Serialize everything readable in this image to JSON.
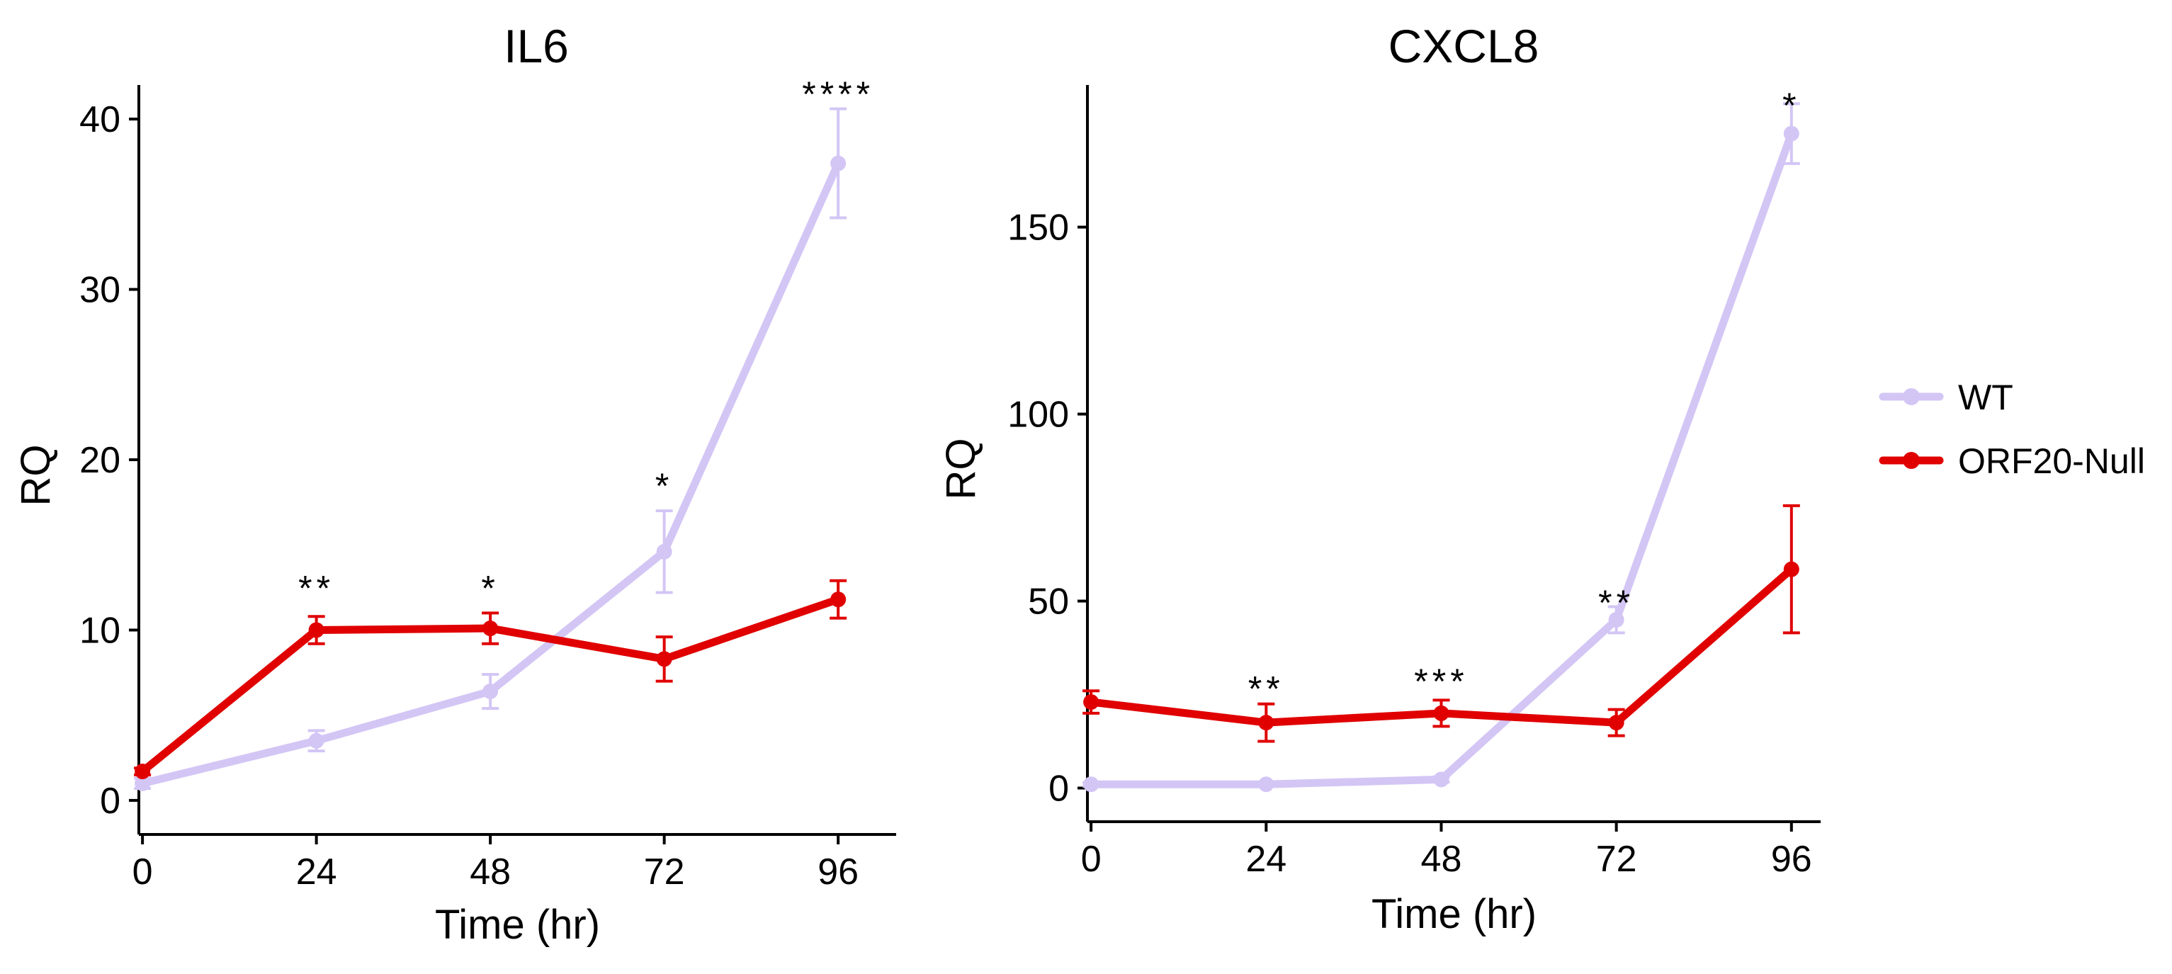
{
  "colors": {
    "wt": "#d3c6f5",
    "null": "#e00000"
  },
  "legend": {
    "entries": [
      {
        "label": "WT",
        "series_key": "wt"
      },
      {
        "label": "ORF20-Null",
        "series_key": "null"
      }
    ]
  },
  "chart_data": [
    {
      "type": "line",
      "title": "IL6",
      "xlabel": "Time (hr)",
      "ylabel": "RQ",
      "x": [
        0,
        24,
        48,
        72,
        96
      ],
      "xticks": [
        "0",
        "24",
        "48",
        "72",
        "96"
      ],
      "xlim": [
        -0.5,
        104
      ],
      "ylim": [
        -2,
        42
      ],
      "yticks": [
        0,
        10,
        20,
        30,
        40
      ],
      "yticklabels": [
        "0",
        "10",
        "20",
        "30",
        "40"
      ],
      "series": [
        {
          "key": "wt",
          "name": "WT",
          "values": [
            1.0,
            3.5,
            6.4,
            14.6,
            37.4
          ],
          "errors": [
            0.3,
            0.6,
            1.0,
            2.4,
            3.2
          ]
        },
        {
          "key": "null",
          "name": "ORF20-Null",
          "values": [
            1.7,
            10.0,
            10.1,
            8.3,
            11.8
          ],
          "errors": [
            0.2,
            0.8,
            0.9,
            1.3,
            1.1
          ]
        }
      ],
      "significance": [
        {
          "x": 24,
          "label": "**",
          "y": 13.0
        },
        {
          "x": 48,
          "label": "*",
          "y": 13.0
        },
        {
          "x": 72,
          "label": "*",
          "y": 19.0
        },
        {
          "x": 96,
          "label": "****",
          "y": 42.0
        }
      ],
      "grid": false,
      "legend": "none"
    },
    {
      "type": "line",
      "title": "CXCL8",
      "xlabel": "Time (hr)",
      "ylabel": "RQ",
      "x": [
        0,
        24,
        48,
        72,
        96
      ],
      "xticks": [
        "0",
        "24",
        "48",
        "72",
        "96"
      ],
      "xlim": [
        -0.5,
        100
      ],
      "ylim": [
        -9,
        188
      ],
      "yticks": [
        0,
        50,
        100,
        150
      ],
      "yticklabels": [
        "0",
        "50",
        "100",
        "150"
      ],
      "series": [
        {
          "key": "wt",
          "name": "WT",
          "values": [
            1.0,
            1.0,
            2.3,
            45.0,
            175.0
          ],
          "errors": [
            0.5,
            0.5,
            0.7,
            3.5,
            8.0
          ]
        },
        {
          "key": "null",
          "name": "ORF20-Null",
          "values": [
            23.0,
            17.5,
            20.0,
            17.5,
            58.5
          ],
          "errors": [
            3.0,
            5.0,
            3.5,
            3.5,
            17.0
          ]
        }
      ],
      "significance": [
        {
          "x": 24,
          "label": "**",
          "y": 29.0
        },
        {
          "x": 48,
          "label": "***",
          "y": 31.0
        },
        {
          "x": 72,
          "label": "**",
          "y": 52.0
        },
        {
          "x": 96,
          "label": "*",
          "y": 185.0
        }
      ],
      "grid": false,
      "legend": "right"
    }
  ]
}
